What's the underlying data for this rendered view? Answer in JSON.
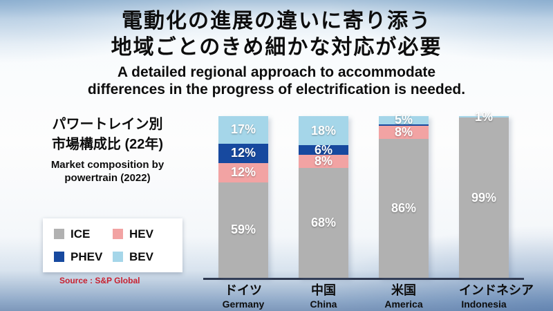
{
  "title": {
    "jp1": "電動化の進展の違いに寄り添う",
    "jp2": "地域ごとのきめ細かな対応が必要",
    "en1": "A detailed regional approach to accommodate",
    "en2": "differences in the progress of electrification is needed."
  },
  "left_panel": {
    "jp1": "パワートレイン別",
    "jp2": "市場構成比 (22年)",
    "en1": "Market composition by",
    "en2": "powertrain (2022)",
    "source": "Source : S&P Global"
  },
  "colors": {
    "ICE": "#b1b1b1",
    "HEV": "#f2a3a3",
    "PHEV": "#17499f",
    "BEV": "#a5d6e9",
    "baseline": "#2e3850",
    "source_red": "#c8202f",
    "title_text": "#0d0d0d",
    "pct_label": "#ffffff"
  },
  "legend": [
    "ICE",
    "HEV",
    "PHEV",
    "BEV"
  ],
  "chart_data": {
    "type": "bar",
    "stacked": true,
    "unit": "%",
    "ylim": [
      0,
      100
    ],
    "order_bottom_to_top": [
      "ICE",
      "HEV",
      "PHEV",
      "BEV"
    ],
    "categories_jp": [
      "ドイツ",
      "中国",
      "米国",
      "インドネシア"
    ],
    "categories_en": [
      "Germany",
      "China",
      "America",
      "Indonesia"
    ],
    "bars": [
      {
        "jp": "ドイツ",
        "en": "Germany",
        "segments": [
          {
            "name": "ICE",
            "value": 59,
            "label": "59%"
          },
          {
            "name": "HEV",
            "value": 12,
            "label": "12%"
          },
          {
            "name": "PHEV",
            "value": 12,
            "label": "12%"
          },
          {
            "name": "BEV",
            "value": 17,
            "label": "17%"
          }
        ]
      },
      {
        "jp": "中国",
        "en": "China",
        "segments": [
          {
            "name": "ICE",
            "value": 68,
            "label": "68%"
          },
          {
            "name": "HEV",
            "value": 8,
            "label": "8%"
          },
          {
            "name": "PHEV",
            "value": 6,
            "label": "6%"
          },
          {
            "name": "BEV",
            "value": 18,
            "label": "18%"
          }
        ]
      },
      {
        "jp": "米国",
        "en": "America",
        "segments": [
          {
            "name": "ICE",
            "value": 86,
            "label": "86%"
          },
          {
            "name": "HEV",
            "value": 8,
            "label": "8%"
          },
          {
            "name": "PHEV",
            "value": 1,
            "label": ""
          },
          {
            "name": "BEV",
            "value": 5,
            "label": "5%"
          }
        ]
      },
      {
        "jp": "インドネシア",
        "en": "Indonesia",
        "segments": [
          {
            "name": "ICE",
            "value": 99,
            "label": "99%"
          },
          {
            "name": "HEV",
            "value": 0,
            "label": ""
          },
          {
            "name": "PHEV",
            "value": 0,
            "label": ""
          },
          {
            "name": "BEV",
            "value": 1,
            "label": "1%"
          }
        ]
      }
    ]
  }
}
